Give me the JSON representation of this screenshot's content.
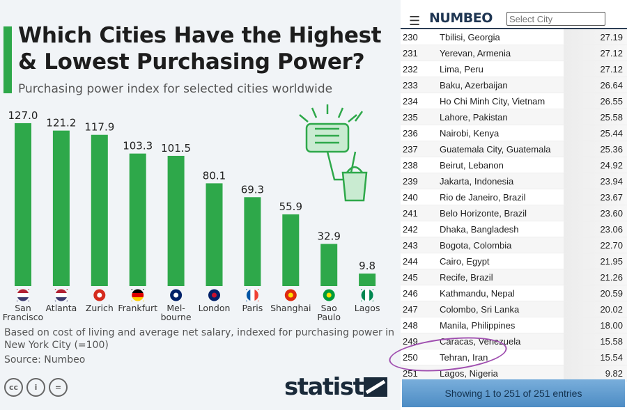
{
  "chart_data": {
    "type": "bar",
    "title": "Which Cities Have the Highest & Lowest Purchasing Power?",
    "title_lines": [
      "Which Cities Have the Highest",
      "& Lowest Purchasing Power?"
    ],
    "subtitle": "Purchasing power index for selected cities worldwide",
    "categories": [
      "San Francisco",
      "Atlanta",
      "Zurich",
      "Frankfurt",
      "Melbourne",
      "London",
      "Paris",
      "Shanghai",
      "Sao Paulo",
      "Lagos"
    ],
    "category_labels": [
      [
        "San",
        "Francisco"
      ],
      [
        "Atlanta"
      ],
      [
        "Zurich"
      ],
      [
        "Frankfurt"
      ],
      [
        "Mel-",
        "bourne"
      ],
      [
        "London"
      ],
      [
        "Paris"
      ],
      [
        "Shanghai"
      ],
      [
        "Sao",
        "Paulo"
      ],
      [
        "Lagos"
      ]
    ],
    "values": [
      127.0,
      121.2,
      117.9,
      103.3,
      101.5,
      80.1,
      69.3,
      55.9,
      32.9,
      9.8
    ],
    "flags": [
      "us",
      "us",
      "ch",
      "de",
      "au",
      "gb",
      "fr",
      "cn",
      "br",
      "ng"
    ],
    "bar_color": "#2ea84a",
    "xlabel": "",
    "ylabel": "",
    "ylim": [
      0,
      130
    ],
    "grid": false
  },
  "notes": {
    "line1": "Based on cost of living and average net salary, indexed for purchasing power in",
    "line2": "New York City (=100)",
    "source": "Source: Numbeo"
  },
  "license": [
    "cc",
    "i",
    "="
  ],
  "logo": "statista",
  "numbeo": {
    "brand": "NUMBEO",
    "search_placeholder": "Select City",
    "rows": [
      [
        "230",
        "Tbilisi, Georgia",
        "27.19"
      ],
      [
        "231",
        "Yerevan, Armenia",
        "27.12"
      ],
      [
        "232",
        "Lima, Peru",
        "27.12"
      ],
      [
        "233",
        "Baku, Azerbaijan",
        "26.64"
      ],
      [
        "234",
        "Ho Chi Minh City, Vietnam",
        "26.55"
      ],
      [
        "235",
        "Lahore, Pakistan",
        "25.58"
      ],
      [
        "236",
        "Nairobi, Kenya",
        "25.44"
      ],
      [
        "237",
        "Guatemala City, Guatemala",
        "25.36"
      ],
      [
        "238",
        "Beirut, Lebanon",
        "24.92"
      ],
      [
        "239",
        "Jakarta, Indonesia",
        "23.94"
      ],
      [
        "240",
        "Rio de Janeiro, Brazil",
        "23.67"
      ],
      [
        "241",
        "Belo Horizonte, Brazil",
        "23.60"
      ],
      [
        "242",
        "Dhaka, Bangladesh",
        "23.06"
      ],
      [
        "243",
        "Bogota, Colombia",
        "22.70"
      ],
      [
        "244",
        "Cairo, Egypt",
        "21.95"
      ],
      [
        "245",
        "Recife, Brazil",
        "21.26"
      ],
      [
        "246",
        "Kathmandu, Nepal",
        "20.59"
      ],
      [
        "247",
        "Colombo, Sri Lanka",
        "20.02"
      ],
      [
        "248",
        "Manila, Philippines",
        "18.00"
      ],
      [
        "249",
        "Caracas, Venezuela",
        "15.58"
      ],
      [
        "250",
        "Tehran, Iran",
        "15.54"
      ],
      [
        "251",
        "Lagos, Nigeria",
        "9.82"
      ]
    ],
    "footer": "Showing 1 to 251 of 251 entries"
  }
}
